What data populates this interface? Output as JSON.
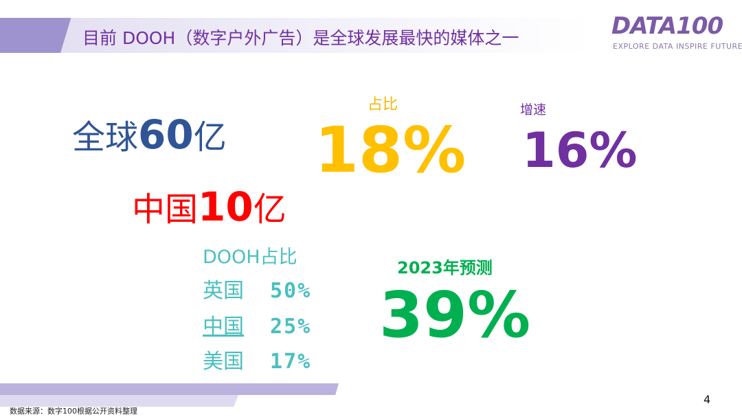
{
  "header": {
    "title": "目前 DOOH（数字户外广告）是全球发展最快的媒体之一",
    "logo": "DATA100",
    "logo_tagline": "EXPLORE DATA  INSPIRE FUTURE"
  },
  "global": {
    "prefix": "全球",
    "number": "60",
    "suffix": "亿"
  },
  "china": {
    "prefix": "中国",
    "number": "10",
    "suffix": "亿"
  },
  "share": {
    "label": "占比",
    "value": "18%"
  },
  "growth": {
    "label": "增速",
    "value": "16%"
  },
  "dooh_share": {
    "label": "DOOH占比",
    "rows": [
      {
        "country": "英国",
        "value": "50%"
      },
      {
        "country": "中国",
        "value": "25%"
      },
      {
        "country": "美国",
        "value": "17%"
      }
    ]
  },
  "forecast": {
    "label": "2023年预测",
    "value": "39%"
  },
  "footer": {
    "source": "数据来源：数字100根据公开资料整理",
    "page": "4"
  },
  "colors": {
    "purple": "#7030A0",
    "blue": "#2F5597",
    "red": "#FF0000",
    "gold": "#FFC000",
    "teal": "#4BBFBF",
    "green": "#00B050"
  }
}
